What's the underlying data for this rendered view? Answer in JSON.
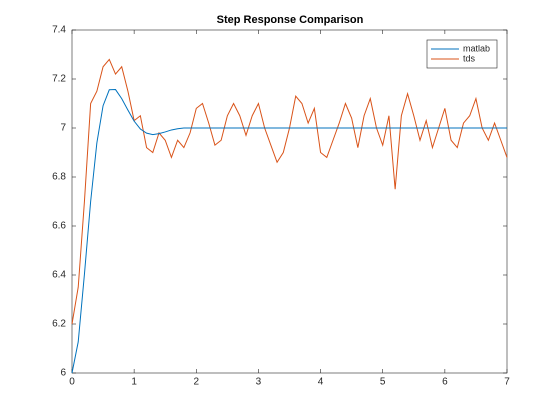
{
  "chart_data": {
    "type": "line",
    "title": "Step Response Comparison",
    "x": [
      0,
      0.1,
      0.2,
      0.3,
      0.4,
      0.5,
      0.6,
      0.7,
      0.8,
      0.9,
      1,
      1.1,
      1.2,
      1.3,
      1.4,
      1.5,
      1.6,
      1.7,
      1.8,
      1.9,
      2,
      2.1,
      2.2,
      2.3,
      2.4,
      2.5,
      2.6,
      2.7,
      2.8,
      2.9,
      3,
      3.1,
      3.2,
      3.3,
      3.4,
      3.5,
      3.6,
      3.7,
      3.8,
      3.9,
      4,
      4.1,
      4.2,
      4.3,
      4.4,
      4.5,
      4.6,
      4.7,
      4.8,
      4.9,
      5,
      5.1,
      5.2,
      5.3,
      5.4,
      5.5,
      5.6,
      5.7,
      5.8,
      5.9,
      6,
      6.1,
      6.2,
      6.3,
      6.4,
      6.5,
      6.6,
      6.7,
      6.8,
      6.9,
      7
    ],
    "series": [
      {
        "name": "matlab",
        "color": "#0072bd",
        "values": [
          6,
          6.127,
          6.403,
          6.7,
          6.939,
          7.091,
          7.156,
          7.157,
          7.12,
          7.073,
          7.028,
          6.996,
          6.979,
          6.973,
          6.977,
          6.984,
          6.992,
          6.997,
          7,
          7,
          7,
          7,
          7,
          7,
          7,
          7,
          7,
          7,
          7,
          7,
          7,
          7,
          7,
          7,
          7,
          7,
          7,
          7,
          7,
          7,
          7,
          7,
          7,
          7,
          7,
          7,
          7,
          7,
          7,
          7,
          7,
          7,
          7,
          7,
          7,
          7,
          7,
          7,
          7,
          7,
          7,
          7,
          7,
          7,
          7,
          7,
          7,
          7,
          7,
          7,
          7
        ]
      },
      {
        "name": "tds",
        "color": "#d95319",
        "values": [
          6.2,
          6.35,
          6.7,
          7.1,
          7.15,
          7.25,
          7.28,
          7.22,
          7.25,
          7.15,
          7.03,
          7.05,
          6.92,
          6.9,
          6.98,
          6.95,
          6.88,
          6.95,
          6.92,
          6.98,
          7.08,
          7.1,
          7.02,
          6.93,
          6.95,
          7.05,
          7.1,
          7.05,
          6.97,
          7.05,
          7.1,
          7,
          6.93,
          6.86,
          6.9,
          7,
          7.13,
          7.1,
          7.02,
          7.08,
          6.9,
          6.88,
          6.95,
          7.02,
          7.1,
          7.04,
          6.92,
          7.05,
          7.12,
          7,
          6.93,
          7.05,
          6.75,
          7.05,
          7.14,
          7.05,
          6.95,
          7.03,
          6.92,
          7,
          7.08,
          6.95,
          6.92,
          7.02,
          7.05,
          7.12,
          7,
          6.95,
          7.02,
          6.95,
          6.88
        ]
      }
    ],
    "xlim": [
      0,
      7
    ],
    "xticks": [
      0,
      1,
      2,
      3,
      4,
      5,
      6,
      7
    ],
    "ylim": [
      6,
      7.4
    ],
    "yticks": [
      6,
      6.2,
      6.4,
      6.6,
      6.8,
      7,
      7.2,
      7.4
    ],
    "legend": "top-right"
  }
}
